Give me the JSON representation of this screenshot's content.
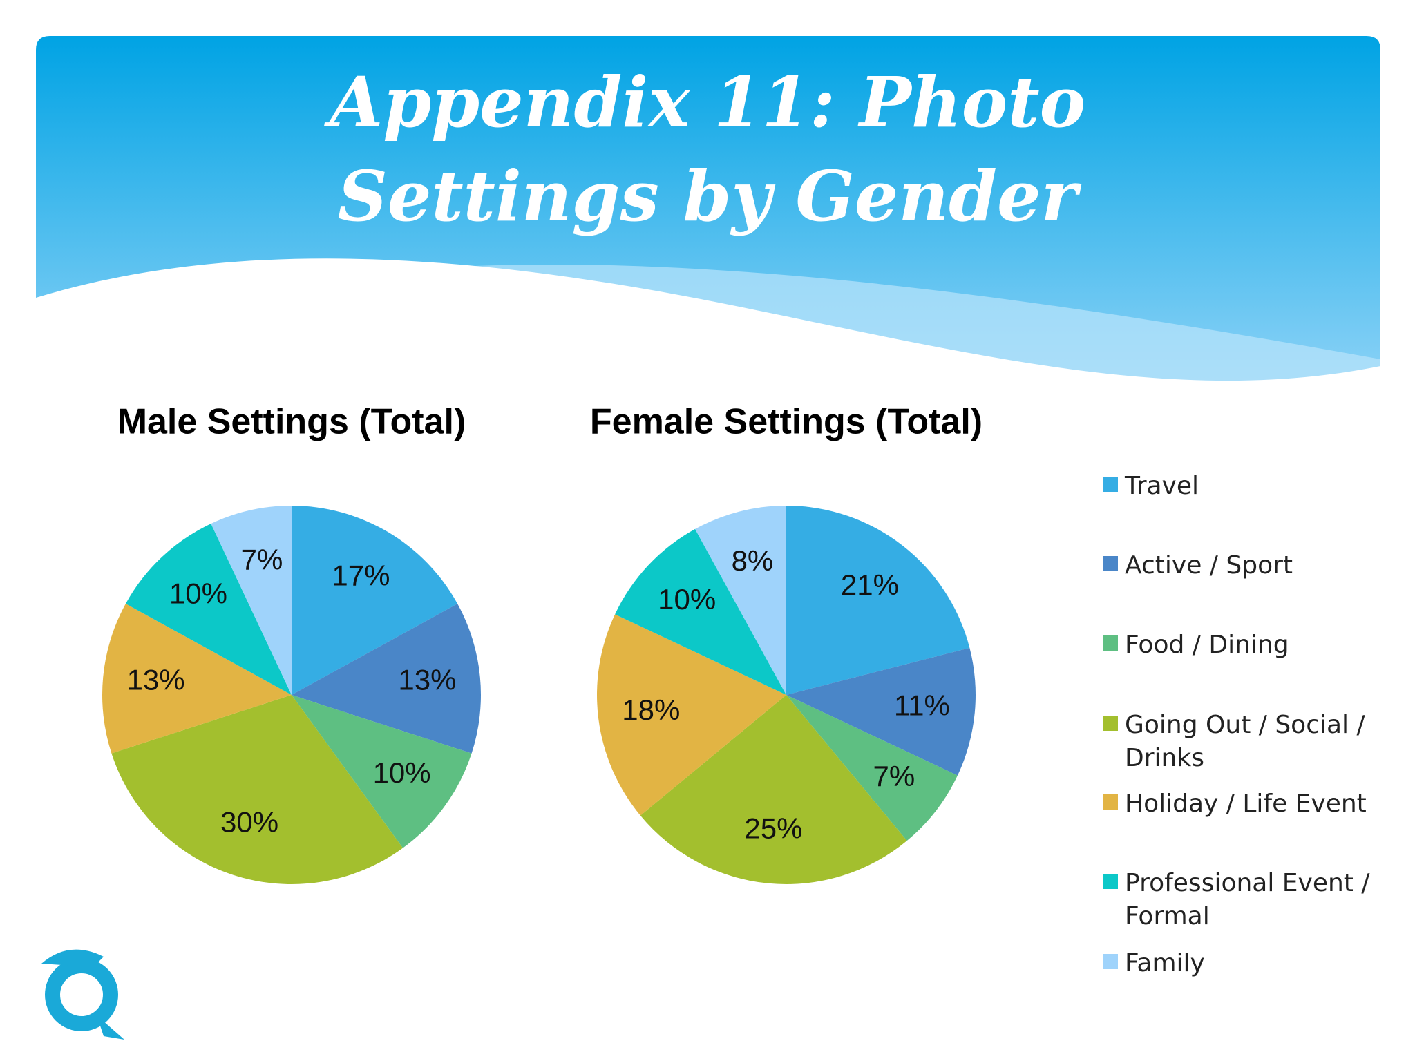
{
  "title": "Appendix 11: Photo Settings by Gender",
  "chart_data": [
    {
      "type": "pie",
      "title": "Male Settings (Total)",
      "categories": [
        "Travel",
        "Active / Sport",
        "Food / Dining",
        "Going Out / Social / Drinks",
        "Holiday / Life Event",
        "Professional Event / Formal",
        "Family"
      ],
      "values": [
        17,
        13,
        10,
        30,
        13,
        10,
        7
      ],
      "value_labels": [
        "17%",
        "13%",
        "10%",
        "30%",
        "13%",
        "10%",
        "7%"
      ],
      "colors": [
        "#35ade4",
        "#4a86c8",
        "#5ebf82",
        "#a3bf2e",
        "#e2b444",
        "#0cc8c8",
        "#9fd3fb"
      ]
    },
    {
      "type": "pie",
      "title": "Female Settings (Total)",
      "categories": [
        "Travel",
        "Active / Sport",
        "Food / Dining",
        "Going Out / Social / Drinks",
        "Holiday / Life Event",
        "Professional Event / Formal",
        "Family"
      ],
      "values": [
        21,
        11,
        7,
        25,
        18,
        10,
        8
      ],
      "value_labels": [
        "21%",
        "11%",
        "7%",
        "25%",
        "18%",
        "10%",
        "8%"
      ],
      "colors": [
        "#35ade4",
        "#4a86c8",
        "#5ebf82",
        "#a3bf2e",
        "#e2b444",
        "#0cc8c8",
        "#9fd3fb"
      ]
    }
  ]
}
